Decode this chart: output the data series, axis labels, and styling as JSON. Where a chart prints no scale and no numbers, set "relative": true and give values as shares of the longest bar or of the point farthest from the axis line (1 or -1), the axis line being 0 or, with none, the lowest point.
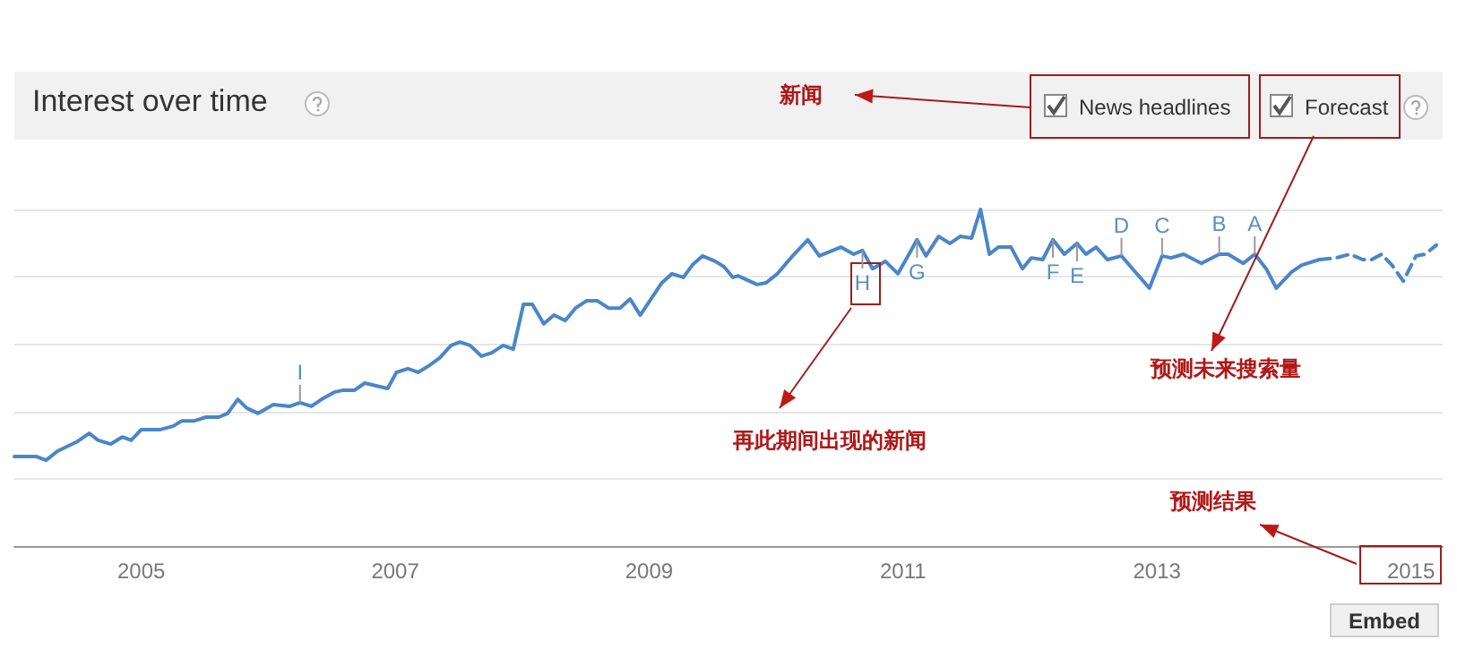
{
  "chart_data": {
    "type": "line",
    "title": "Interest over time",
    "relative": true,
    "grid": "y",
    "marker": "none",
    "xlim": [
      2004,
      2015.25
    ],
    "xticks": [
      2005,
      2007,
      2009,
      2011,
      2013,
      2015
    ],
    "series": [
      {
        "color": "#4a86c8",
        "line_style": "solid",
        "x": [
          2004.0,
          2004.17,
          2004.25,
          2004.34,
          2004.49,
          2004.59,
          2004.66,
          2004.76,
          2004.85,
          2004.92,
          2005.0,
          2005.15,
          2005.25,
          2005.32,
          2005.42,
          2005.51,
          2005.61,
          2005.68,
          2005.76,
          2005.83,
          2005.92,
          2006.04,
          2006.17,
          2006.25,
          2006.34,
          2006.42,
          2006.52,
          2006.59,
          2006.68,
          2006.76,
          2006.94,
          2007.01,
          2007.1,
          2007.18,
          2007.27,
          2007.35,
          2007.44,
          2007.51,
          2007.59,
          2007.68,
          2007.76,
          2007.85,
          2007.93,
          2008.01,
          2008.08,
          2008.17,
          2008.25,
          2008.34,
          2008.42,
          2008.51,
          2008.59,
          2008.68,
          2008.77,
          2008.85,
          2008.93,
          2009.1,
          2009.18,
          2009.27,
          2009.34,
          2009.42,
          2009.52,
          2009.59,
          2009.66,
          2009.7,
          2009.85,
          2009.92,
          2010.01,
          2010.13,
          2010.25,
          2010.34,
          2010.51,
          2010.61,
          2010.68,
          2010.76,
          2010.86,
          2010.96,
          2011.03,
          2011.11,
          2011.18,
          2011.28,
          2011.37,
          2011.45,
          2011.54,
          2011.61,
          2011.68,
          2011.75,
          2011.85,
          2011.94,
          2012.01,
          2012.1,
          2012.18,
          2012.27,
          2012.37,
          2012.44,
          2012.52,
          2012.61,
          2012.72,
          2012.83,
          2012.94,
          2013.04,
          2013.11,
          2013.21,
          2013.35,
          2013.49,
          2013.56,
          2013.68,
          2013.77,
          2013.86,
          2013.94,
          2014.06,
          2014.14,
          2014.28
        ],
        "values": [
          0.266,
          0.266,
          0.255,
          0.282,
          0.309,
          0.335,
          0.314,
          0.303,
          0.324,
          0.314,
          0.346,
          0.346,
          0.356,
          0.372,
          0.372,
          0.383,
          0.383,
          0.394,
          0.436,
          0.41,
          0.394,
          0.42,
          0.415,
          0.426,
          0.415,
          0.436,
          0.457,
          0.463,
          0.463,
          0.484,
          0.468,
          0.516,
          0.527,
          0.516,
          0.537,
          0.559,
          0.596,
          0.606,
          0.596,
          0.564,
          0.574,
          0.596,
          0.585,
          0.718,
          0.718,
          0.66,
          0.686,
          0.67,
          0.707,
          0.729,
          0.729,
          0.707,
          0.707,
          0.734,
          0.686,
          0.782,
          0.809,
          0.798,
          0.835,
          0.862,
          0.846,
          0.83,
          0.798,
          0.803,
          0.777,
          0.782,
          0.809,
          0.862,
          0.91,
          0.862,
          0.888,
          0.867,
          0.878,
          0.824,
          0.846,
          0.809,
          0.856,
          0.91,
          0.862,
          0.92,
          0.899,
          0.92,
          0.915,
          1,
          0.867,
          0.888,
          0.888,
          0.824,
          0.856,
          0.851,
          0.91,
          0.867,
          0.899,
          0.867,
          0.888,
          0.851,
          0.862,
          0.814,
          0.766,
          0.862,
          0.856,
          0.867,
          0.84,
          0.867,
          0.867,
          0.84,
          0.867,
          0.824,
          0.766,
          0.814,
          0.835,
          0.851
        ]
      },
      {
        "color": "#4a86c8",
        "line_style": "dashed",
        "x": [
          2014.28,
          2014.41,
          2014.52,
          2014.62,
          2014.69,
          2014.77,
          2014.85,
          2014.94,
          2015.04,
          2015.11,
          2015.2
        ],
        "values": [
          0.851,
          0.856,
          0.867,
          0.851,
          0.851,
          0.867,
          0.835,
          0.787,
          0.862,
          0.867,
          0.894
        ]
      }
    ],
    "annotations": [
      "新闻",
      "再此期间出现的新闻",
      "预测未来搜索量",
      "预测结果",
      "News headlines",
      "Forecast",
      "Embed",
      {
        "text": "I",
        "x": 2006.25,
        "y": 0.426
      },
      {
        "text": "H",
        "x": 2010.68,
        "y": 0.878
      },
      {
        "text": "G",
        "x": 2011.11,
        "y": 0.91
      },
      {
        "text": "F",
        "x": 2012.18,
        "y": 0.91
      },
      {
        "text": "E",
        "x": 2012.37,
        "y": 0.899
      },
      {
        "text": "D",
        "x": 2012.72,
        "y": 0.862
      },
      {
        "text": "C",
        "x": 2013.04,
        "y": 0.862
      },
      {
        "text": "B",
        "x": 2013.49,
        "y": 0.867
      },
      {
        "text": "A",
        "x": 2013.77,
        "y": 0.867
      }
    ]
  }
}
